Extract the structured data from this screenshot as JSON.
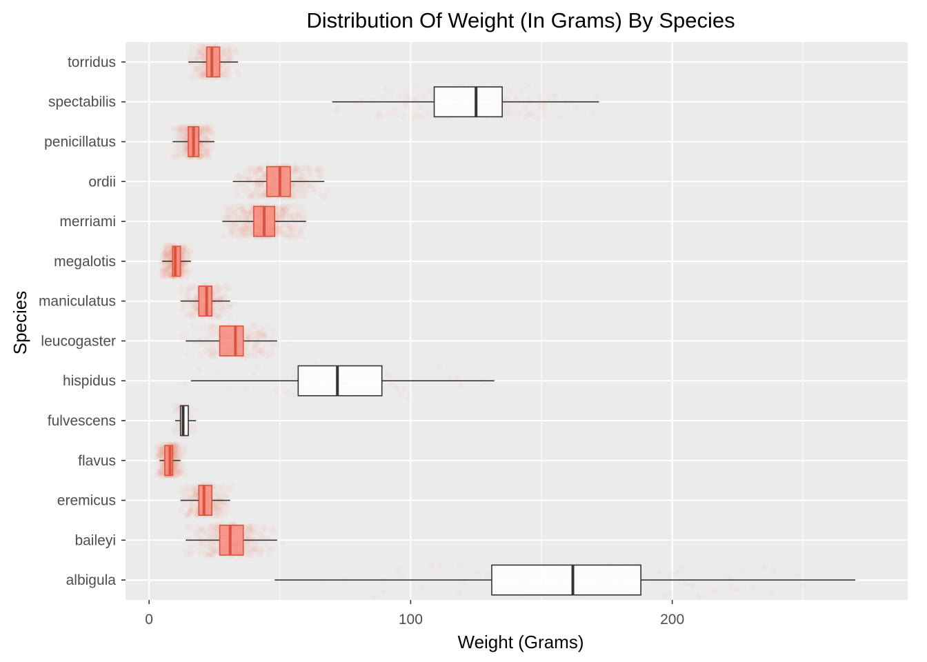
{
  "chart_data": {
    "type": "boxplot",
    "orientation": "horizontal",
    "title": "Distribution Of Weight (In Grams) By Species",
    "xlabel": "Weight (Grams)",
    "ylabel": "Species",
    "xlim": [
      -9,
      290
    ],
    "x_ticks": [
      0,
      100,
      200
    ],
    "x_tick_labels": [
      "0",
      "100",
      "200"
    ],
    "grid": true,
    "legend": "none",
    "colors": {
      "panel_background": "#EBEBEB",
      "grid": "#FFFFFF",
      "points": "#FA8072",
      "box_outline": "#333333",
      "box_fill_dense": "#FA8072",
      "box_fill_sparse": "#FFFFFF"
    },
    "categories": [
      "albigula",
      "baileyi",
      "eremicus",
      "flavus",
      "fulvescens",
      "hispidus",
      "leucogaster",
      "maniculatus",
      "megalotis",
      "merriami",
      "ordii",
      "penicillatus",
      "spectabilis",
      "torridus"
    ],
    "boxes": [
      {
        "species": "albigula",
        "whisker_low": 48,
        "q1": 131,
        "median": 162,
        "q3": 188,
        "whisker_high": 270,
        "point_density": 0.06
      },
      {
        "species": "baileyi",
        "whisker_low": 14,
        "q1": 27,
        "median": 31,
        "q3": 36,
        "whisker_high": 49,
        "point_density": 0.5
      },
      {
        "species": "eremicus",
        "whisker_low": 12,
        "q1": 19,
        "median": 21,
        "q3": 24,
        "whisker_high": 31,
        "point_density": 0.4
      },
      {
        "species": "flavus",
        "whisker_low": 4,
        "q1": 6,
        "median": 8,
        "q3": 9,
        "whisker_high": 12,
        "point_density": 0.7
      },
      {
        "species": "fulvescens",
        "whisker_low": 10,
        "q1": 12,
        "median": 13,
        "q3": 15,
        "whisker_high": 18,
        "point_density": 0.02
      },
      {
        "species": "hispidus",
        "whisker_low": 16,
        "q1": 57,
        "median": 72,
        "q3": 89,
        "whisker_high": 132,
        "point_density": 0.02
      },
      {
        "species": "leucogaster",
        "whisker_low": 14,
        "q1": 27,
        "median": 33,
        "q3": 36,
        "whisker_high": 49,
        "point_density": 0.35
      },
      {
        "species": "maniculatus",
        "whisker_low": 12,
        "q1": 19,
        "median": 22,
        "q3": 24,
        "whisker_high": 31,
        "point_density": 0.35
      },
      {
        "species": "megalotis",
        "whisker_low": 5,
        "q1": 9,
        "median": 10,
        "q3": 12,
        "whisker_high": 16,
        "point_density": 0.65
      },
      {
        "species": "merriami",
        "whisker_low": 28,
        "q1": 40,
        "median": 44,
        "q3": 48,
        "whisker_high": 60,
        "point_density": 0.85
      },
      {
        "species": "ordii",
        "whisker_low": 32,
        "q1": 45,
        "median": 50,
        "q3": 54,
        "whisker_high": 67,
        "point_density": 0.6
      },
      {
        "species": "penicillatus",
        "whisker_low": 9,
        "q1": 15,
        "median": 17,
        "q3": 19,
        "whisker_high": 25,
        "point_density": 0.6
      },
      {
        "species": "spectabilis",
        "whisker_low": 70,
        "q1": 109,
        "median": 125,
        "q3": 135,
        "whisker_high": 172,
        "point_density": 0.15
      },
      {
        "species": "torridus",
        "whisker_low": 15,
        "q1": 22,
        "median": 24,
        "q3": 27,
        "whisker_high": 34,
        "point_density": 0.4
      }
    ]
  }
}
